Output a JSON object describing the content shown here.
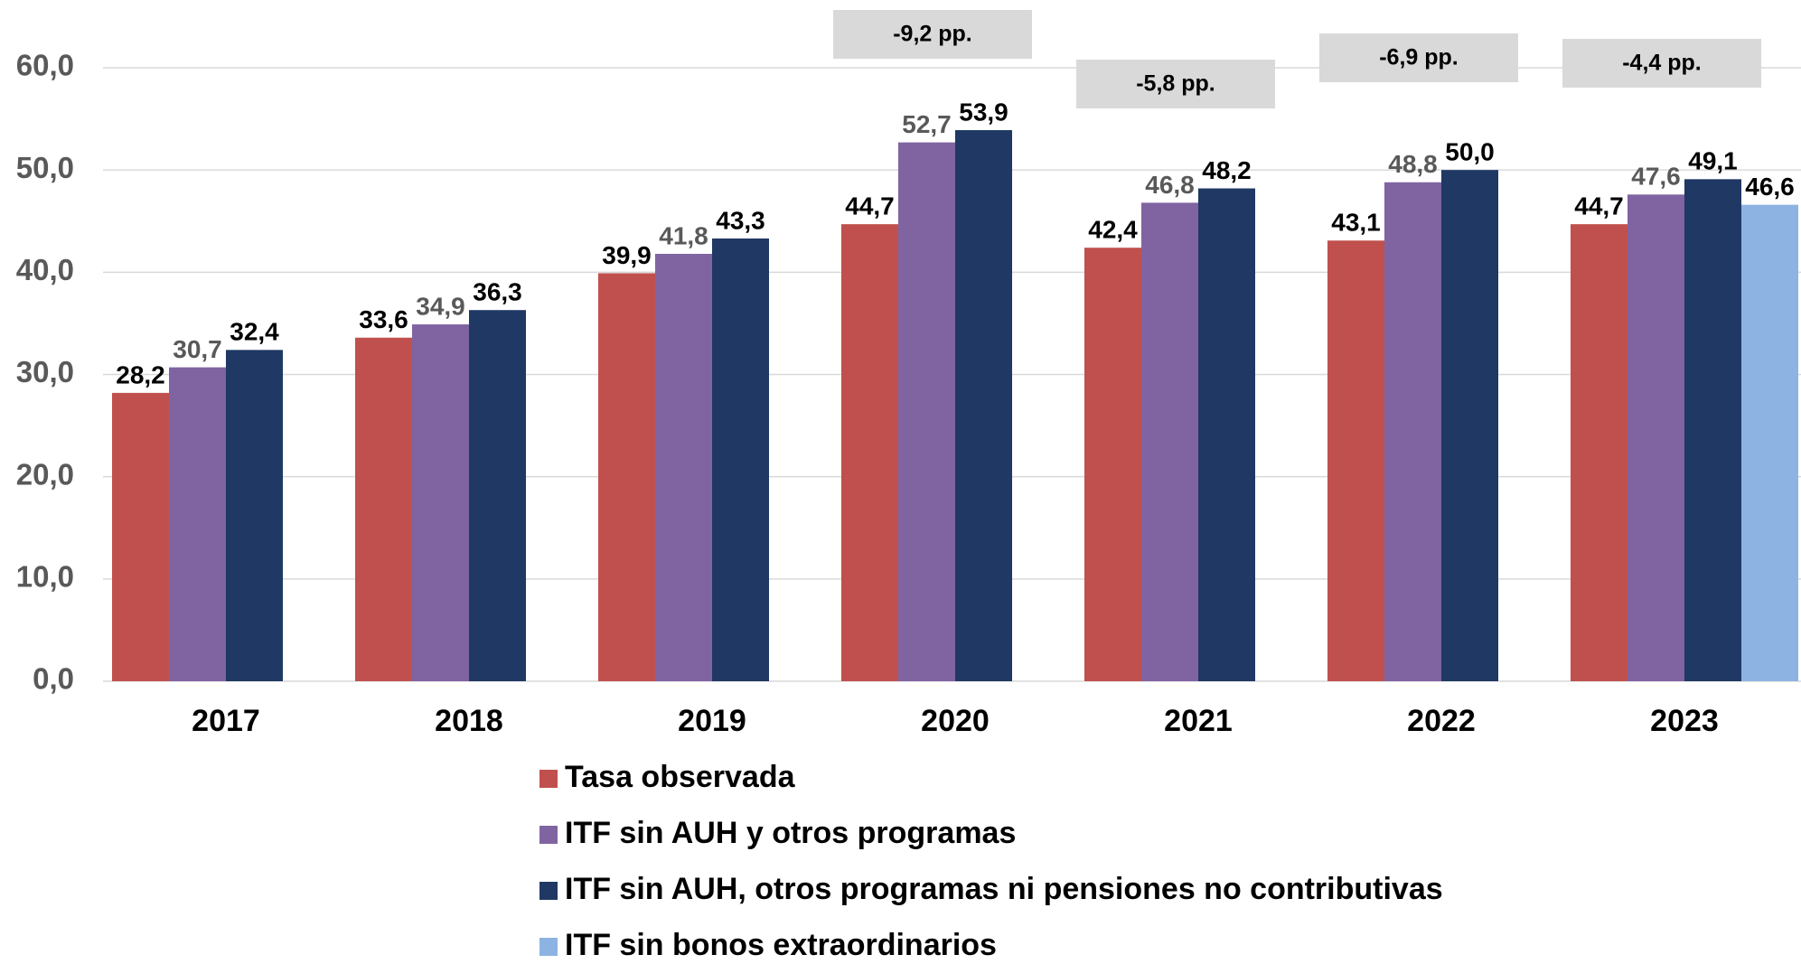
{
  "chart_data": {
    "type": "bar",
    "categories": [
      "2017",
      "2018",
      "2019",
      "2020",
      "2021",
      "2022",
      "2023"
    ],
    "series": [
      {
        "name": "Tasa observada",
        "color": "#c0504d",
        "values": [
          28.2,
          33.6,
          39.9,
          44.7,
          42.4,
          43.1,
          44.7
        ],
        "value_labels": [
          "28,2",
          "33,6",
          "39,9",
          "44,7",
          "42,4",
          "43,1",
          "44,7"
        ]
      },
      {
        "name": "ITF sin AUH y otros programas",
        "color": "#8064a2",
        "values": [
          30.7,
          34.9,
          41.8,
          52.7,
          46.8,
          48.8,
          47.6
        ],
        "value_labels": [
          "30,7",
          "34,9",
          "41,8",
          "52,7",
          "46,8",
          "48,8",
          "47,6"
        ]
      },
      {
        "name": "ITF sin AUH, otros programas ni pensiones no contributivas",
        "color": "#1f3864",
        "values": [
          32.4,
          36.3,
          43.3,
          53.9,
          48.2,
          50.0,
          49.1
        ],
        "value_labels": [
          "32,4",
          "36,3",
          "43,3",
          "53,9",
          "48,2",
          "50,0",
          "49,1"
        ]
      },
      {
        "name": "ITF sin bonos extraordinarios",
        "color": "#8db3e2",
        "values": [
          null,
          null,
          null,
          null,
          null,
          null,
          46.6
        ],
        "value_labels": [
          null,
          null,
          null,
          null,
          null,
          null,
          "46,6"
        ]
      }
    ],
    "ylim": [
      0,
      60
    ],
    "yticks": [
      {
        "value": 0,
        "label": "0,0"
      },
      {
        "value": 10,
        "label": "10,0"
      },
      {
        "value": 20,
        "label": "20,0"
      },
      {
        "value": 30,
        "label": "30,0"
      },
      {
        "value": 40,
        "label": "40,0"
      },
      {
        "value": 50,
        "label": "50,0"
      },
      {
        "value": 60,
        "label": "60,0"
      }
    ],
    "grid": true,
    "legend": "bottom",
    "annotations": [
      {
        "text": "-9,2 pp.",
        "category": "2020"
      },
      {
        "text": "-5,8 pp.",
        "category": "2021"
      },
      {
        "text": "-6,9 pp.",
        "category": "2022"
      },
      {
        "text": "-4,4 pp.",
        "category": "2023"
      }
    ]
  }
}
